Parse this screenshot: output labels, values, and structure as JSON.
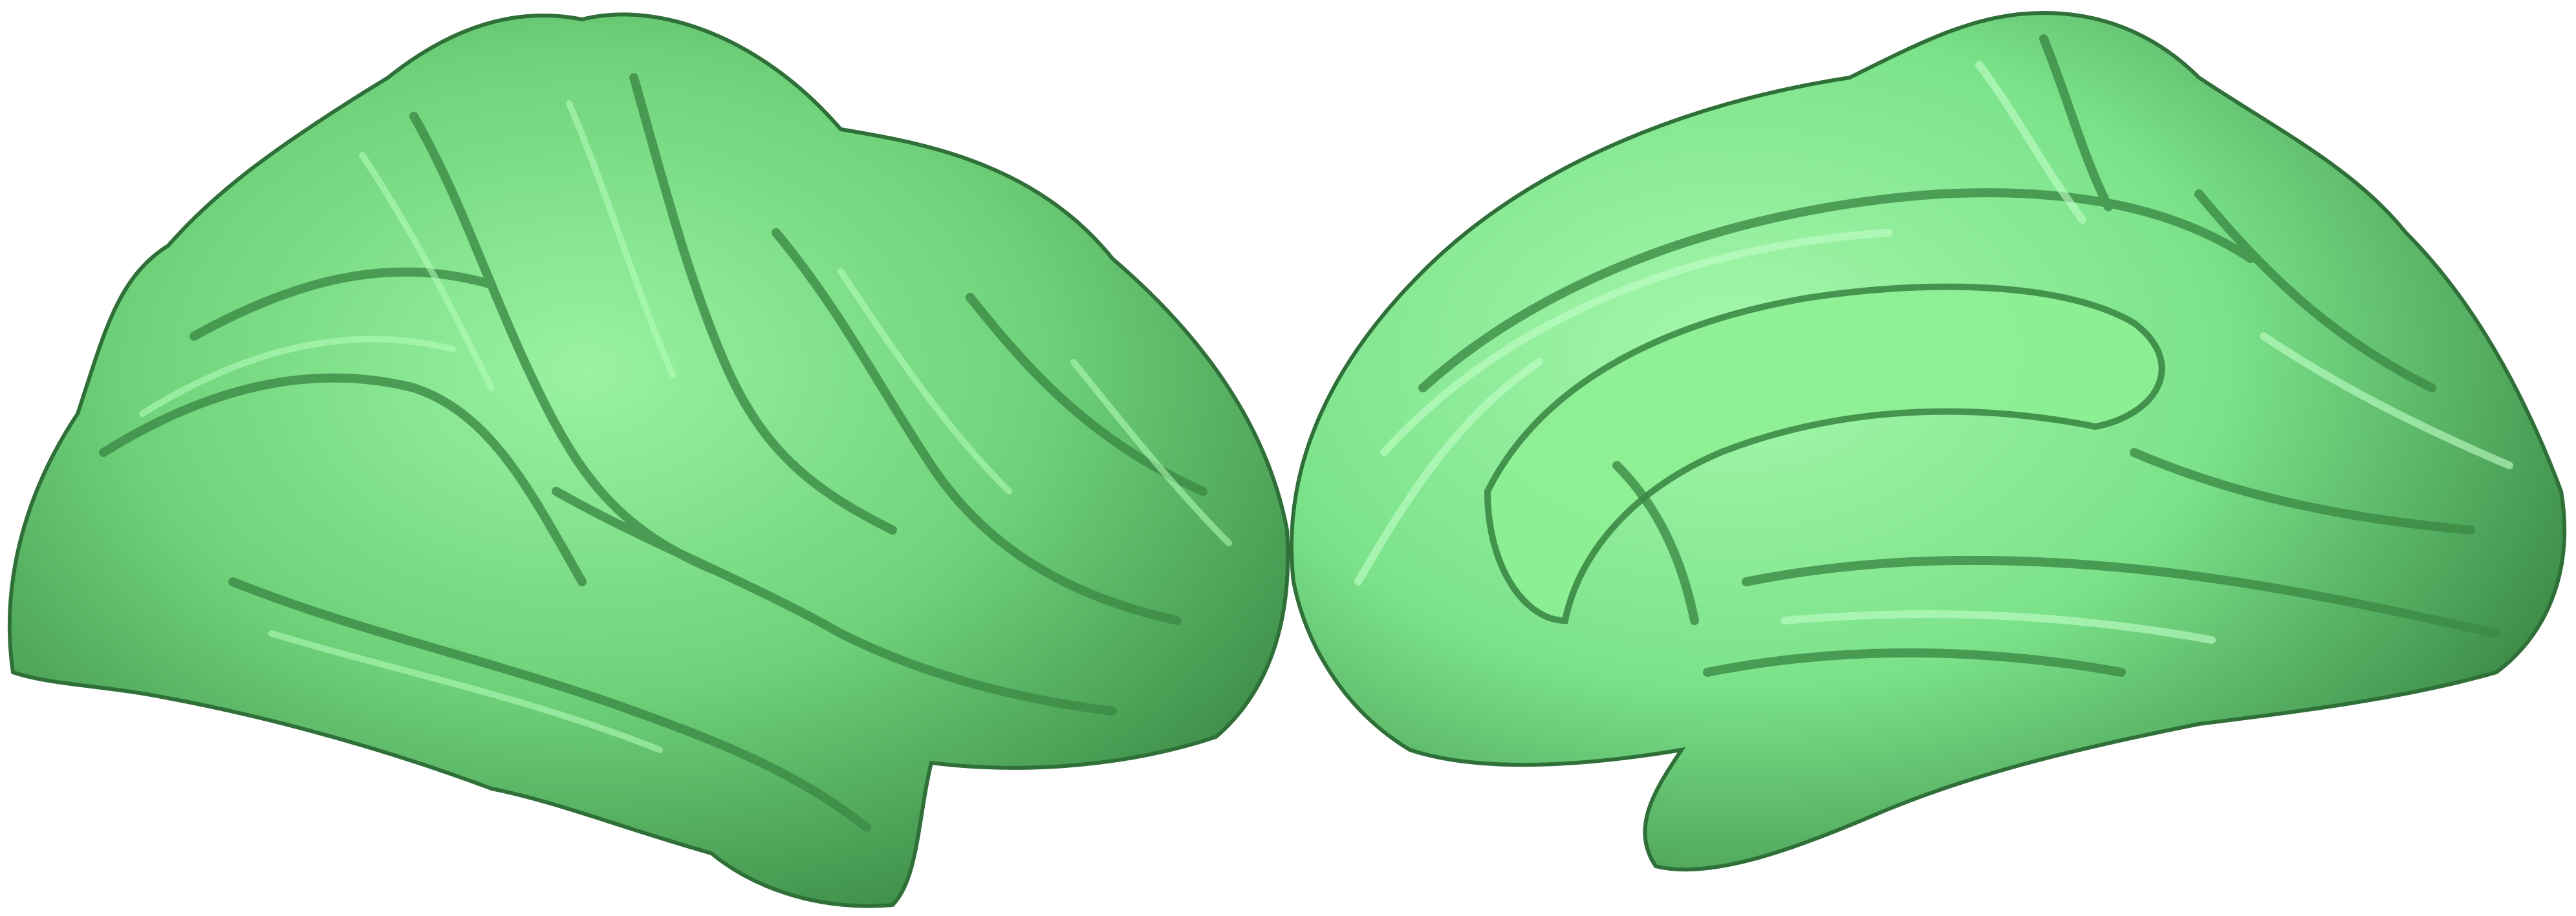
{
  "figure": {
    "background_color": "#ffffff",
    "panels": [
      {
        "view": "lateral",
        "object": "cortical-surface",
        "surface_color": "#6fd27a",
        "shadow_color": "#3f8f4a",
        "highlight_color": "#9af3a2"
      },
      {
        "view": "medial",
        "object": "cortical-surface",
        "surface_color": "#7be28a",
        "shadow_color": "#3f8f4a",
        "highlight_color": "#a6f8ad"
      }
    ]
  }
}
